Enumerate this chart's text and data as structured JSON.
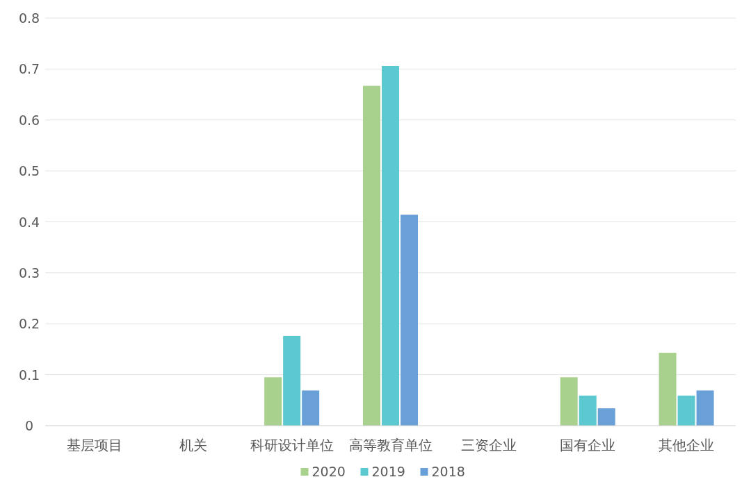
{
  "chart_data": {
    "type": "bar",
    "categories": [
      "基层项目",
      "机关",
      "科研设计单位",
      "高等教育单位",
      "三资企业",
      "国有企业",
      "其他企业"
    ],
    "series": [
      {
        "name": "2020",
        "color": "#a9d18e",
        "values": [
          0,
          0,
          0.095,
          0.667,
          0,
          0.095,
          0.143
        ]
      },
      {
        "name": "2019",
        "color": "#5bc9cf",
        "values": [
          0,
          0,
          0.176,
          0.706,
          0,
          0.059,
          0.059
        ]
      },
      {
        "name": "2018",
        "color": "#69a0d7",
        "values": [
          0,
          0,
          0.069,
          0.414,
          0,
          0.034,
          0.069
        ]
      }
    ],
    "ylim": [
      0,
      0.8
    ],
    "yticks": [
      0,
      0.1,
      0.2,
      0.3,
      0.4,
      0.5,
      0.6,
      0.7,
      0.8
    ],
    "grid": "y",
    "legend": "bottom"
  }
}
